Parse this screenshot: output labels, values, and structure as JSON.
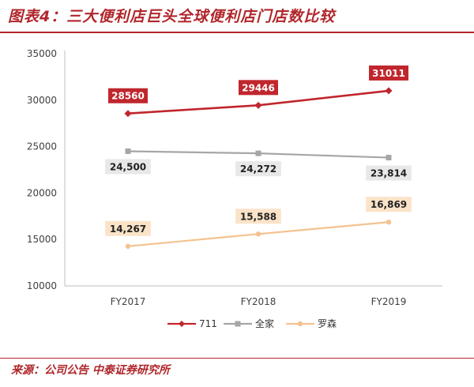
{
  "header": {
    "title": "图表4：三大便利店巨头全球便利店门店数比较",
    "source": "来源：公司公告 中泰证券研究所"
  },
  "chart_data": {
    "type": "line",
    "categories": [
      "FY2017",
      "FY2018",
      "FY2019"
    ],
    "ylim": [
      10000,
      35000
    ],
    "yticks": [
      10000,
      15000,
      20000,
      25000,
      30000,
      35000
    ],
    "grid": false,
    "legend": "bottom",
    "series": [
      {
        "name": "711",
        "values": [
          28560,
          29446,
          31011
        ],
        "labels": [
          "28560",
          "29446",
          "31011"
        ],
        "color": "#c0262d",
        "marker": "diamond",
        "label_style": "filled",
        "label_position": "above"
      },
      {
        "name": "全家",
        "values": [
          24500,
          24272,
          23814
        ],
        "labels": [
          "24,500",
          "24,272",
          "23,814"
        ],
        "color": "#a6a6a6",
        "marker": "square",
        "label_style": "light",
        "label_position": "below"
      },
      {
        "name": "罗森",
        "values": [
          14267,
          15588,
          16869
        ],
        "labels": [
          "14,267",
          "15,588",
          "16,869"
        ],
        "color": "#f4c28f",
        "marker": "circle",
        "label_style": "light",
        "label_position": "above"
      }
    ]
  }
}
